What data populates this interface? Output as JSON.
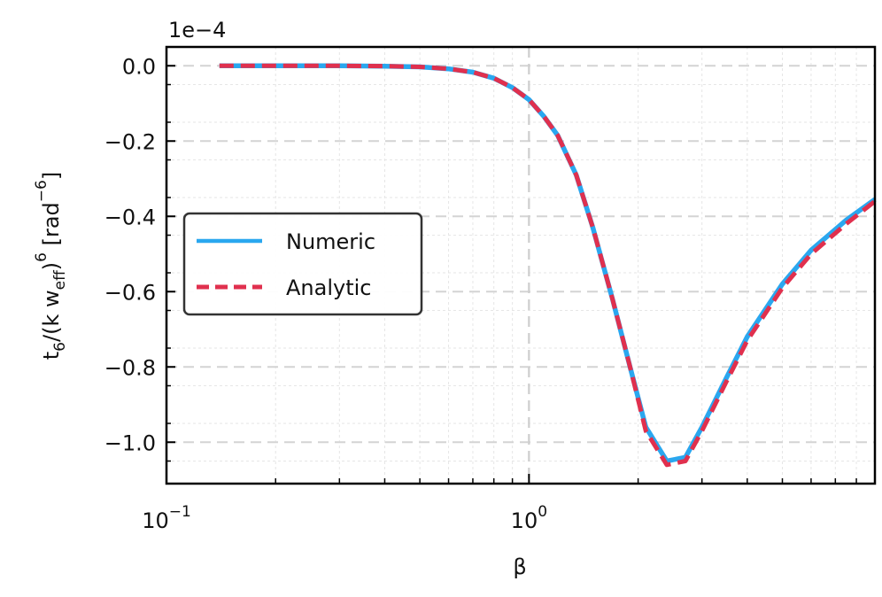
{
  "chart_data": {
    "type": "line",
    "title": "",
    "xlabel": "β",
    "ylabel": "t6/(k weff)6 [rad−6]",
    "ylabel_parts": {
      "t": "t",
      "sub6": "6",
      "mid": "/(k w",
      "subeff": "eff",
      "close": ")",
      "sup6": "6",
      "unit_open": " [rad",
      "supneg6": "−6",
      "unit_close": "]"
    },
    "offset_label": "1e−4",
    "x_scale": "log",
    "xlim": [
      0.1,
      9
    ],
    "ylim": [
      -1.11,
      0.05
    ],
    "x_ticks": [
      {
        "value": 0.1,
        "base": "10",
        "exp": "−1"
      },
      {
        "value": 1,
        "base": "10",
        "exp": "0"
      }
    ],
    "y_ticks": [
      {
        "value": 0.0,
        "label": "0.0"
      },
      {
        "value": -0.2,
        "label": "−0.2"
      },
      {
        "value": -0.4,
        "label": "−0.4"
      },
      {
        "value": -0.6,
        "label": "−0.6"
      },
      {
        "value": -0.8,
        "label": "−0.8"
      },
      {
        "value": -1.0,
        "label": "−1.0"
      }
    ],
    "vline": 1.0,
    "grid": true,
    "legend_position": "center-left",
    "series": [
      {
        "name": "Numeric",
        "color": "#2aa7ef",
        "style": "solid",
        "x": [
          0.14,
          0.2,
          0.3,
          0.4,
          0.5,
          0.6,
          0.7,
          0.8,
          0.9,
          1.0,
          1.1,
          1.2,
          1.35,
          1.5,
          1.7,
          1.9,
          2.1,
          2.4,
          2.7,
          3.0,
          3.5,
          4.0,
          5.0,
          6.0,
          7.5,
          9.0
        ],
        "y": [
          0.0,
          0.0,
          0.0,
          -0.001,
          -0.003,
          -0.008,
          -0.017,
          -0.033,
          -0.058,
          -0.09,
          -0.135,
          -0.185,
          -0.29,
          -0.43,
          -0.62,
          -0.8,
          -0.96,
          -1.05,
          -1.04,
          -0.96,
          -0.83,
          -0.72,
          -0.58,
          -0.49,
          -0.41,
          -0.355
        ]
      },
      {
        "name": "Analytic",
        "color": "#e0304e",
        "style": "dashed",
        "x": [
          0.14,
          0.2,
          0.3,
          0.4,
          0.5,
          0.6,
          0.7,
          0.8,
          0.9,
          1.0,
          1.1,
          1.2,
          1.35,
          1.5,
          1.7,
          1.9,
          2.1,
          2.4,
          2.7,
          3.0,
          3.5,
          4.0,
          5.0,
          6.0,
          7.5,
          9.0
        ],
        "y": [
          0.0,
          0.0,
          0.0,
          -0.001,
          -0.003,
          -0.008,
          -0.017,
          -0.033,
          -0.058,
          -0.09,
          -0.135,
          -0.185,
          -0.29,
          -0.43,
          -0.62,
          -0.8,
          -0.97,
          -1.06,
          -1.05,
          -0.97,
          -0.84,
          -0.73,
          -0.59,
          -0.5,
          -0.42,
          -0.36
        ]
      }
    ]
  }
}
